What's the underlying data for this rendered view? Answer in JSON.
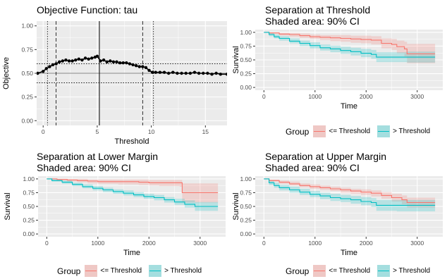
{
  "colors": {
    "threshold_below": "#F8766D",
    "threshold_above": "#00BFC4",
    "panel_bg": "#EBEBEB",
    "grid": "#FFFFFF"
  },
  "legend": {
    "title": "Group",
    "items": [
      "<= Threshold",
      "> Threshold"
    ]
  },
  "chart_data": [
    {
      "id": "objective",
      "type": "scatter",
      "title": "Objective Function: tau",
      "xlabel": "Threshold",
      "ylabel": "Objective",
      "xlim": [
        -0.6,
        17
      ],
      "ylim": [
        -0.05,
        1.05
      ],
      "xticks": [
        0,
        5,
        10,
        15
      ],
      "yticks": [
        0.0,
        0.25,
        0.5,
        0.75,
        1.0
      ],
      "ytick_labels": [
        "0.00",
        "0.25",
        "0.50",
        "0.75",
        "1.00"
      ],
      "grid": true,
      "series": [
        {
          "x": [
            -0.5,
            0.0,
            0.3,
            0.6,
            0.9,
            1.2,
            1.5,
            1.8,
            2.1,
            2.4,
            2.7,
            3.0,
            3.3,
            3.6,
            3.9,
            4.2,
            4.5,
            4.8,
            5.0,
            5.3,
            5.6,
            5.9,
            6.2,
            6.5,
            6.8,
            7.1,
            7.4,
            7.7,
            8.0,
            8.3,
            8.6,
            8.9,
            9.2,
            9.5,
            9.8,
            10.1,
            10.4,
            10.8,
            11.2,
            11.6,
            12.0,
            12.4,
            12.8,
            13.2,
            13.6,
            14.0,
            14.4,
            14.8,
            15.2,
            15.6,
            16.0,
            16.4,
            17.0
          ],
          "y": [
            0.5,
            0.52,
            0.55,
            0.57,
            0.59,
            0.6,
            0.62,
            0.63,
            0.64,
            0.63,
            0.63,
            0.64,
            0.65,
            0.64,
            0.66,
            0.65,
            0.66,
            0.67,
            0.68,
            0.63,
            0.64,
            0.62,
            0.63,
            0.62,
            0.62,
            0.61,
            0.61,
            0.61,
            0.6,
            0.59,
            0.58,
            0.57,
            0.57,
            0.56,
            0.53,
            0.51,
            0.51,
            0.51,
            0.51,
            0.5,
            0.51,
            0.5,
            0.5,
            0.5,
            0.5,
            0.51,
            0.5,
            0.5,
            0.5,
            0.49,
            0.5,
            0.49,
            0.49
          ]
        }
      ],
      "hlines_solid": [
        0.5
      ],
      "hlines_dotted": [
        0.4,
        0.6
      ],
      "vline_solid": [
        5.2
      ],
      "vlines_dashed": [
        1.2,
        9.2
      ],
      "vlines_dotted": [
        0.4,
        10.2
      ]
    },
    {
      "id": "sep-threshold",
      "type": "line",
      "title": "Separation at Threshold",
      "subtitle": "Shaded area: 90% CI",
      "xlabel": "Time",
      "ylabel": "Survival",
      "xlim": [
        -170,
        3500
      ],
      "ylim": [
        -0.05,
        1.05
      ],
      "xticks": [
        0,
        1000,
        2000,
        3000
      ],
      "yticks": [
        0.0,
        0.25,
        0.5,
        0.75,
        1.0
      ],
      "ytick_labels": [
        "0.00 -",
        "0.25 -",
        "0.50 -",
        "0.75 -",
        "1.00 -"
      ],
      "series": [
        {
          "name": "<= Threshold",
          "x": [
            0,
            100,
            300,
            500,
            700,
            900,
            1100,
            1300,
            1500,
            1700,
            1900,
            2100,
            2300,
            2500,
            2600,
            2750,
            2800,
            3350
          ],
          "y": [
            1.0,
            0.99,
            0.97,
            0.96,
            0.94,
            0.92,
            0.91,
            0.9,
            0.89,
            0.88,
            0.87,
            0.86,
            0.8,
            0.78,
            0.74,
            0.7,
            0.61,
            0.61
          ],
          "lo": [
            1.0,
            0.97,
            0.94,
            0.92,
            0.9,
            0.88,
            0.86,
            0.84,
            0.83,
            0.81,
            0.8,
            0.78,
            0.71,
            0.68,
            0.62,
            0.56,
            0.44,
            0.44
          ],
          "hi": [
            1.0,
            1.0,
            0.99,
            0.99,
            0.98,
            0.96,
            0.95,
            0.95,
            0.95,
            0.94,
            0.94,
            0.93,
            0.89,
            0.88,
            0.85,
            0.83,
            0.79,
            0.79
          ]
        },
        {
          "name": "> Threshold",
          "x": [
            0,
            100,
            200,
            300,
            500,
            700,
            900,
            1100,
            1300,
            1500,
            1700,
            1900,
            2100,
            2200,
            2300,
            2500,
            2800,
            3000,
            3350
          ],
          "y": [
            1.0,
            0.96,
            0.92,
            0.89,
            0.84,
            0.8,
            0.76,
            0.72,
            0.7,
            0.67,
            0.65,
            0.62,
            0.6,
            0.55,
            0.55,
            0.55,
            0.55,
            0.55,
            0.55
          ],
          "lo": [
            1.0,
            0.93,
            0.89,
            0.85,
            0.8,
            0.75,
            0.71,
            0.67,
            0.64,
            0.61,
            0.58,
            0.55,
            0.52,
            0.46,
            0.46,
            0.46,
            0.45,
            0.45,
            0.45
          ],
          "hi": [
            1.0,
            0.99,
            0.96,
            0.93,
            0.89,
            0.85,
            0.82,
            0.78,
            0.76,
            0.74,
            0.72,
            0.7,
            0.68,
            0.64,
            0.64,
            0.64,
            0.65,
            0.65,
            0.65
          ]
        }
      ]
    },
    {
      "id": "sep-lower",
      "type": "line",
      "title": "Separation at Lower Margin",
      "subtitle": "Shaded area: 90% CI",
      "xlabel": "Time",
      "ylabel": "Survival",
      "xlim": [
        -170,
        3500
      ],
      "ylim": [
        -0.05,
        1.05
      ],
      "xticks": [
        0,
        1000,
        2000,
        3000
      ],
      "yticks": [
        0.0,
        0.25,
        0.5,
        0.75,
        1.0
      ],
      "ytick_labels": [
        "0.00 -",
        "0.25 -",
        "0.50 -",
        "0.75 -",
        "1.00 -"
      ],
      "series": [
        {
          "name": "<= Threshold",
          "x": [
            0,
            200,
            400,
            600,
            800,
            1000,
            1200,
            1400,
            1600,
            1800,
            2000,
            2200,
            2400,
            2600,
            2650,
            3350
          ],
          "y": [
            1.0,
            0.99,
            0.98,
            0.97,
            0.96,
            0.95,
            0.95,
            0.95,
            0.95,
            0.94,
            0.93,
            0.93,
            0.93,
            0.93,
            0.75,
            0.75
          ],
          "lo": [
            1.0,
            0.97,
            0.95,
            0.94,
            0.92,
            0.91,
            0.91,
            0.9,
            0.9,
            0.89,
            0.88,
            0.87,
            0.87,
            0.86,
            0.57,
            0.57
          ],
          "hi": [
            1.0,
            1.0,
            1.0,
            1.0,
            0.99,
            0.99,
            0.99,
            0.99,
            0.99,
            0.99,
            0.98,
            0.98,
            0.98,
            0.98,
            0.92,
            0.92
          ]
        },
        {
          "name": "> Threshold",
          "x": [
            0,
            100,
            300,
            500,
            700,
            900,
            1100,
            1300,
            1500,
            1700,
            1900,
            2100,
            2300,
            2500,
            2700,
            2900,
            3350
          ],
          "y": [
            1.0,
            0.97,
            0.94,
            0.9,
            0.86,
            0.83,
            0.8,
            0.77,
            0.74,
            0.71,
            0.68,
            0.66,
            0.62,
            0.58,
            0.54,
            0.5,
            0.5
          ],
          "lo": [
            1.0,
            0.95,
            0.91,
            0.87,
            0.83,
            0.79,
            0.76,
            0.73,
            0.7,
            0.67,
            0.64,
            0.61,
            0.57,
            0.53,
            0.48,
            0.42,
            0.42
          ],
          "hi": [
            1.0,
            0.99,
            0.97,
            0.93,
            0.9,
            0.87,
            0.84,
            0.81,
            0.79,
            0.76,
            0.73,
            0.71,
            0.67,
            0.64,
            0.61,
            0.58,
            0.58
          ]
        }
      ]
    },
    {
      "id": "sep-upper",
      "type": "line",
      "title": "Separation at Upper Margin",
      "subtitle": "Shaded area: 90% CI",
      "xlabel": "Time",
      "ylabel": "Survival",
      "xlim": [
        -170,
        3500
      ],
      "ylim": [
        -0.05,
        1.05
      ],
      "xticks": [
        0,
        1000,
        2000,
        3000
      ],
      "yticks": [
        0.0,
        0.25,
        0.5,
        0.75,
        1.0
      ],
      "ytick_labels": [
        "0.00 -",
        "0.25 -",
        "0.50 -",
        "0.75 -",
        "1.00 -"
      ],
      "series": [
        {
          "name": "<= Threshold",
          "x": [
            0,
            100,
            300,
            500,
            700,
            900,
            1100,
            1300,
            1500,
            1700,
            1900,
            2100,
            2300,
            2500,
            2700,
            2800,
            3350
          ],
          "y": [
            1.0,
            0.97,
            0.94,
            0.91,
            0.88,
            0.86,
            0.84,
            0.82,
            0.8,
            0.78,
            0.76,
            0.74,
            0.7,
            0.66,
            0.62,
            0.57,
            0.57
          ],
          "lo": [
            1.0,
            0.95,
            0.91,
            0.88,
            0.85,
            0.82,
            0.8,
            0.78,
            0.75,
            0.73,
            0.71,
            0.68,
            0.64,
            0.59,
            0.54,
            0.48,
            0.48
          ],
          "hi": [
            1.0,
            0.99,
            0.97,
            0.95,
            0.92,
            0.9,
            0.88,
            0.86,
            0.84,
            0.82,
            0.81,
            0.79,
            0.76,
            0.73,
            0.7,
            0.66,
            0.66
          ]
        },
        {
          "name": "> Threshold",
          "x": [
            0,
            100,
            200,
            300,
            500,
            700,
            900,
            1100,
            1300,
            1500,
            1700,
            1900,
            2100,
            2200,
            2400,
            2600,
            2800,
            3000,
            3350
          ],
          "y": [
            1.0,
            0.93,
            0.88,
            0.84,
            0.8,
            0.76,
            0.72,
            0.69,
            0.66,
            0.64,
            0.62,
            0.59,
            0.57,
            0.52,
            0.52,
            0.52,
            0.52,
            0.52,
            0.52
          ],
          "lo": [
            1.0,
            0.89,
            0.84,
            0.79,
            0.75,
            0.71,
            0.67,
            0.63,
            0.6,
            0.58,
            0.55,
            0.52,
            0.49,
            0.42,
            0.42,
            0.41,
            0.41,
            0.41,
            0.41
          ],
          "hi": [
            1.0,
            0.97,
            0.93,
            0.89,
            0.86,
            0.82,
            0.78,
            0.75,
            0.73,
            0.71,
            0.69,
            0.67,
            0.65,
            0.62,
            0.62,
            0.62,
            0.62,
            0.62,
            0.62
          ]
        }
      ]
    }
  ]
}
